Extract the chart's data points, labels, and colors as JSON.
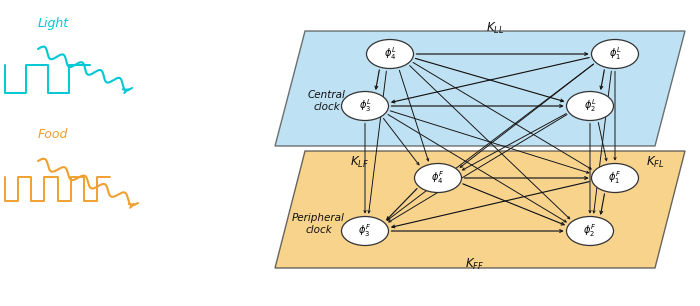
{
  "fig_width": 7.0,
  "fig_height": 3.06,
  "dpi": 100,
  "bg_color": "#ffffff",
  "light_color": "#00c8d4",
  "food_color": "#f0a030",
  "blue_plane_color": "#a8d8f0",
  "orange_plane_color": "#f5c870",
  "node_facecolor": "#ffffff",
  "node_edgecolor": "#333333",
  "arrow_dark": "#111111",
  "arrow_gray": "#bbbbbb",
  "KLL_label": "$K_{LL}$",
  "KFF_label": "$K_{FF}$",
  "KLF_label": "$K_{LF}$",
  "KFL_label": "$K_{FL}$",
  "central_label": "Central\nclock",
  "peripheral_label": "Peripheral\nclock",
  "light_label": "Light",
  "food_label": "Food",
  "phi4L": "$\\phi_4^L$",
  "phi1L": "$\\phi_1^L$",
  "phi2L": "$\\phi_2^L$",
  "phi3L": "$\\phi_3^L$",
  "phi4F": "$\\phi_4^F$",
  "phi1F": "$\\phi_1^F$",
  "phi2F": "$\\phi_2^F$",
  "phi3F": "$\\phi_3^F$",
  "xlim": [
    0,
    7.0
  ],
  "ylim": [
    0,
    3.06
  ]
}
